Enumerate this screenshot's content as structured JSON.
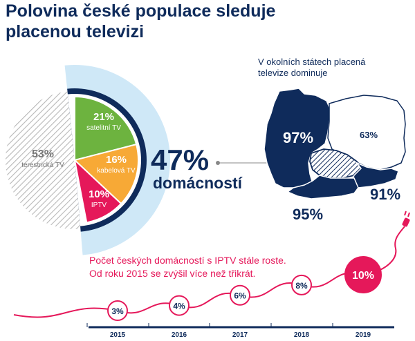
{
  "title_line1": "Polovina české populace sleduje",
  "title_line2": "placenou televizi",
  "colors": {
    "navy": "#0f2b5b",
    "green": "#6db33f",
    "orange": "#f7a936",
    "pink": "#e5185a",
    "lightblue": "#cfe8f7",
    "hatch": "#b8b8b8",
    "gray_text": "#777777"
  },
  "chart_data": [
    {
      "type": "pie",
      "slices": [
        {
          "label": "satelitní TV",
          "value": 21,
          "value_text": "21%",
          "color": "#6db33f"
        },
        {
          "label": "kabelová TV",
          "value": 16,
          "value_text": "16%",
          "color": "#f7a936"
        },
        {
          "label": "IPTV",
          "value": 10,
          "value_text": "10%",
          "color": "#e5185a"
        },
        {
          "label": "terestrická TV",
          "value": 53,
          "value_text": "53%",
          "color": "hatched-gray"
        }
      ],
      "callout": {
        "value": "47%",
        "label": "domácností"
      }
    },
    {
      "type": "line",
      "title_line1": "Počet českých domácností s IPTV stále roste.",
      "title_line2": "Od roku 2015 se zvýšil více než třikrát.",
      "categories": [
        "2015",
        "2016",
        "2017",
        "2018",
        "2019"
      ],
      "values": [
        3,
        4,
        6,
        8,
        10
      ],
      "value_labels": [
        "3%",
        "4%",
        "6%",
        "8%",
        "10%"
      ]
    }
  ],
  "map": {
    "heading_line1": "V okolních státech placená",
    "heading_line2": "televize dominuje",
    "values": {
      "germany": "97%",
      "poland": "63%",
      "austria": "95%",
      "slovakia": "91%"
    }
  }
}
